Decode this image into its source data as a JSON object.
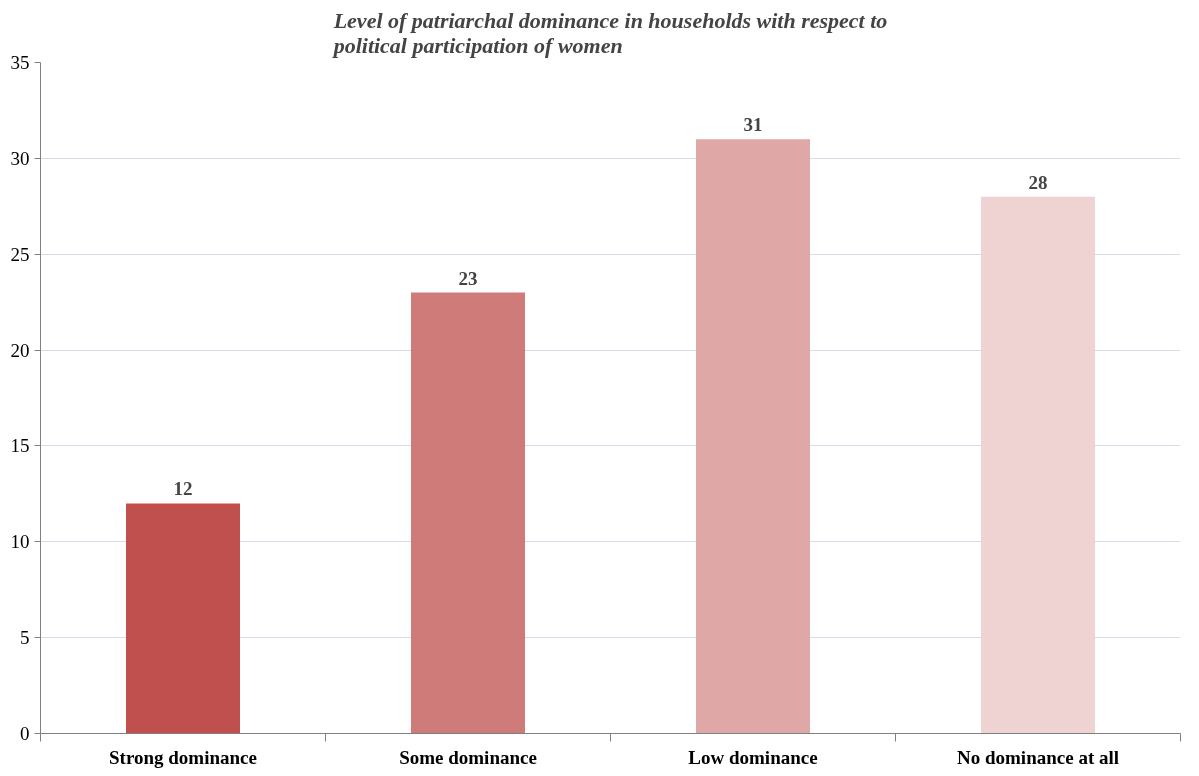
{
  "chart_data": {
    "type": "bar",
    "title": "Level of patriarchal dominance in households with respect to\npolitical participation of women",
    "categories": [
      "Strong dominance",
      "Some dominance",
      "Low dominance",
      "No dominance at all"
    ],
    "values": [
      12,
      23,
      31,
      28
    ],
    "colors": [
      "#c0504d",
      "#cf7b79",
      "#dfa7a6",
      "#efd3d2"
    ],
    "ylim": [
      0,
      35
    ],
    "yticks": [
      0,
      5,
      10,
      15,
      20,
      25,
      30,
      35
    ],
    "grid": "y",
    "data_labels": true
  }
}
